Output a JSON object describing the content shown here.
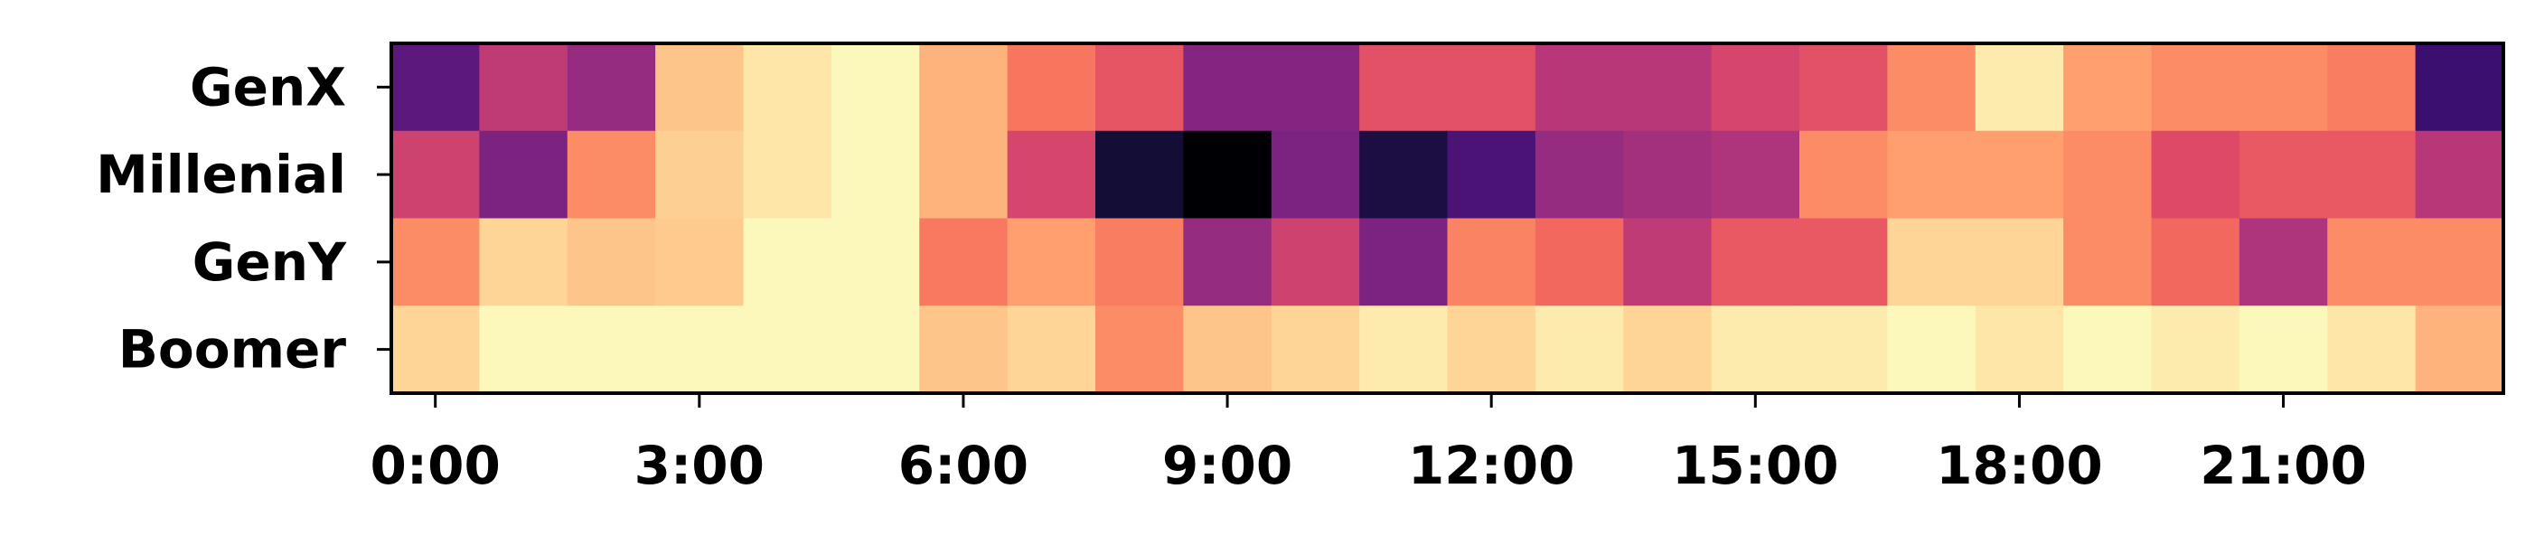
{
  "chart_data": {
    "type": "heatmap",
    "title": "",
    "xlabel": "",
    "ylabel": "",
    "colormap": "magma",
    "value_range": [
      0,
      1
    ],
    "rows": [
      "GenX",
      "Millenial",
      "GenY",
      "Boomer"
    ],
    "columns": [
      "0:00",
      "1:00",
      "2:00",
      "3:00",
      "4:00",
      "5:00",
      "6:00",
      "7:00",
      "8:00",
      "9:00",
      "10:00",
      "11:00",
      "12:00",
      "13:00",
      "14:00",
      "15:00",
      "16:00",
      "17:00",
      "18:00",
      "19:00",
      "20:00",
      "21:00",
      "22:00",
      "23:00"
    ],
    "x_tick_labels": [
      "0:00",
      "3:00",
      "6:00",
      "9:00",
      "12:00",
      "15:00",
      "18:00",
      "21:00"
    ],
    "values": [
      [
        0.28,
        0.52,
        0.42,
        0.88,
        0.95,
        0.99,
        0.84,
        0.71,
        0.63,
        0.38,
        0.38,
        0.62,
        0.62,
        0.5,
        0.5,
        0.58,
        0.62,
        0.76,
        0.96,
        0.8,
        0.76,
        0.76,
        0.73,
        0.2
      ],
      [
        0.56,
        0.36,
        0.76,
        0.9,
        0.95,
        0.99,
        0.84,
        0.58,
        0.1,
        0.0,
        0.36,
        0.12,
        0.24,
        0.42,
        0.45,
        0.48,
        0.76,
        0.8,
        0.8,
        0.76,
        0.6,
        0.64,
        0.64,
        0.5
      ],
      [
        0.76,
        0.91,
        0.88,
        0.89,
        0.99,
        0.99,
        0.72,
        0.8,
        0.73,
        0.42,
        0.56,
        0.36,
        0.74,
        0.68,
        0.52,
        0.64,
        0.64,
        0.91,
        0.91,
        0.76,
        0.68,
        0.48,
        0.76,
        0.76
      ],
      [
        0.91,
        0.99,
        0.99,
        0.99,
        0.99,
        0.99,
        0.88,
        0.91,
        0.76,
        0.88,
        0.91,
        0.96,
        0.91,
        0.96,
        0.91,
        0.96,
        0.96,
        0.99,
        0.95,
        0.99,
        0.96,
        0.99,
        0.95,
        0.84
      ]
    ]
  }
}
